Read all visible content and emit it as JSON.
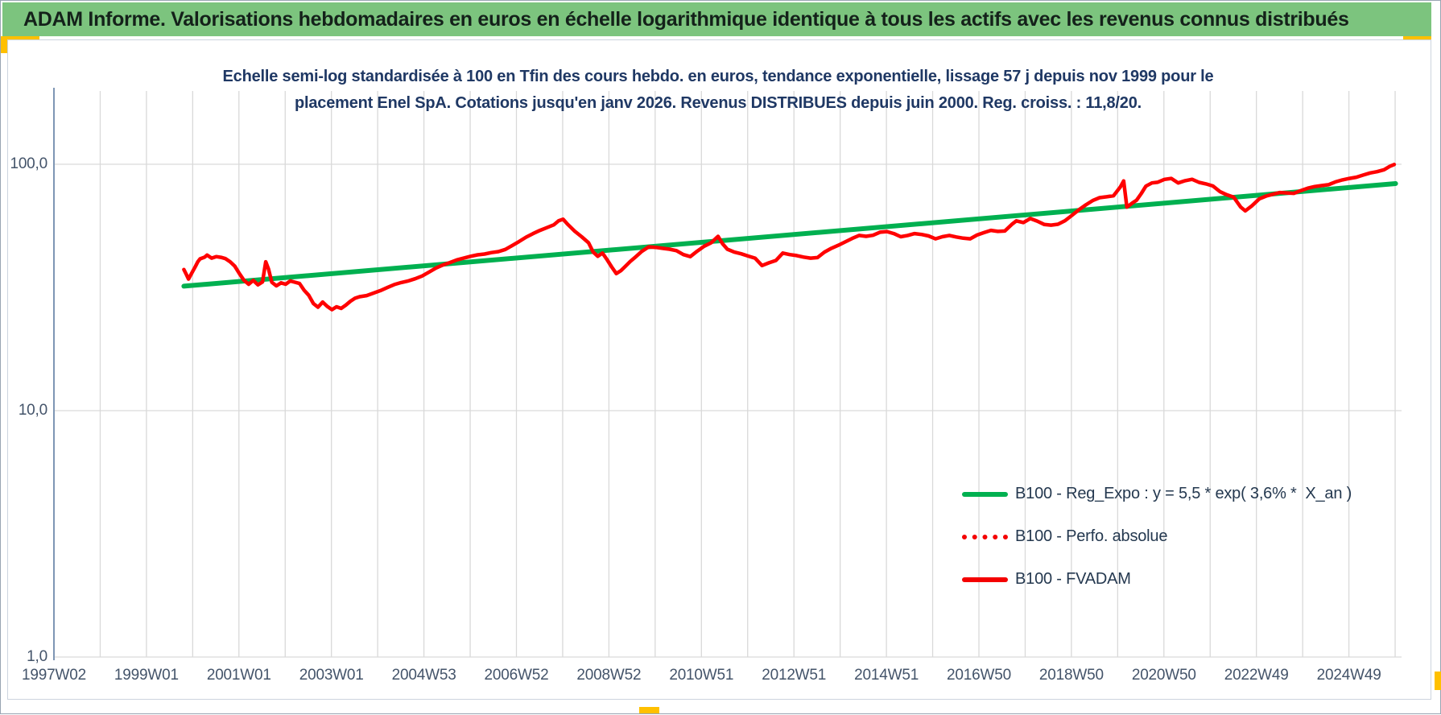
{
  "page": {
    "header": {
      "title": "ADAM Informe. Valorisations hebdomadaires en euros en échelle logarithmique identique à tous les actifs avec les revenus connus distribués",
      "bg_color": "#7CC47E",
      "accent_color": "#FFC000"
    }
  },
  "chart_data": {
    "type": "line",
    "title": "Echelle semi-log standardisée à 100 en Tfin des cours hebdo. en euros, tendance exponentielle, lissage 57 j depuis nov 1999 pour le placement Enel SpA. Cotations jusqu'en janv 2026. Revenus DISTRIBUES depuis juin 2000. Reg. croiss. : 11,8/20.",
    "title_lines": [
      "Echelle semi-log standardisée à 100 en Tfin des cours hebdo. en euros, tendance exponentielle, lissage 57 j depuis nov 1999 pour le",
      "placement Enel SpA. Cotations jusqu'en janv 2026. Revenus DISTRIBUES depuis juin 2000. Reg. croiss. : 11,8/20."
    ],
    "xlabel": "",
    "ylabel": "",
    "x_axis": {
      "tick_labels": [
        "1997W02",
        "1999W01",
        "2001W01",
        "2003W01",
        "2004W53",
        "2006W52",
        "2008W52",
        "2010W51",
        "2012W51",
        "2014W51",
        "2016W50",
        "2018W50",
        "2020W50",
        "2022W49",
        "2024W49"
      ],
      "range_years": [
        1997.04,
        2026.2
      ],
      "minor_gridline_interval_years": 1
    },
    "y_axis": {
      "scale": "log",
      "tick_labels": [
        "100,0",
        "10,0",
        "1,0"
      ],
      "tick_values": [
        100,
        10,
        1
      ],
      "range": [
        1,
        200
      ],
      "grid": true
    },
    "legend": {
      "position": "center-right",
      "entries": [
        {
          "label": "B100 - Reg_Expo : y = 5,5 * exp( 3,6% *  X_an )",
          "color": "#00B050",
          "style": "solid"
        },
        {
          "label": "B100 - Perfo. absolue",
          "color": "#FF0000",
          "style": "dotted"
        },
        {
          "label": "B100 - FVADAM",
          "color": "#FF0000",
          "style": "solid"
        }
      ]
    },
    "series": [
      {
        "name": "B100 - Reg_Expo",
        "color": "#00B050",
        "style": "solid",
        "width": 6,
        "note": "exponential trend, straight on semilog axis",
        "points": [
          [
            1999.85,
            32.0
          ],
          [
            2026.05,
            83.5
          ]
        ]
      },
      {
        "name": "B100 - Perfo. absolue",
        "color": "#FF0000",
        "style": "dotted",
        "note": "coincides with B100 - FVADAM, not separately visible on plot",
        "points": []
      },
      {
        "name": "B100 - FVADAM",
        "color": "#FF0000",
        "style": "solid",
        "width": 4.5,
        "points": [
          [
            1999.85,
            37.4
          ],
          [
            1999.9,
            35.8
          ],
          [
            1999.95,
            34.2
          ],
          [
            2000.05,
            37.0
          ],
          [
            2000.1,
            38.5
          ],
          [
            2000.15,
            40.2
          ],
          [
            2000.2,
            41.3
          ],
          [
            2000.3,
            42.0
          ],
          [
            2000.35,
            42.8
          ],
          [
            2000.45,
            41.6
          ],
          [
            2000.55,
            42.2
          ],
          [
            2000.65,
            41.9
          ],
          [
            2000.75,
            41.4
          ],
          [
            2000.85,
            40.2
          ],
          [
            2000.95,
            38.6
          ],
          [
            2001.05,
            36.0
          ],
          [
            2001.15,
            33.8
          ],
          [
            2001.25,
            32.6
          ],
          [
            2001.35,
            33.8
          ],
          [
            2001.45,
            32.4
          ],
          [
            2001.55,
            33.3
          ],
          [
            2001.62,
            40.2
          ],
          [
            2001.68,
            37.5
          ],
          [
            2001.75,
            33.2
          ],
          [
            2001.85,
            32.1
          ],
          [
            2001.95,
            33.0
          ],
          [
            2002.05,
            32.6
          ],
          [
            2002.15,
            33.6
          ],
          [
            2002.25,
            33.2
          ],
          [
            2002.35,
            32.8
          ],
          [
            2002.45,
            30.8
          ],
          [
            2002.55,
            29.4
          ],
          [
            2002.65,
            27.2
          ],
          [
            2002.75,
            26.3
          ],
          [
            2002.85,
            27.6
          ],
          [
            2002.95,
            26.5
          ],
          [
            2003.05,
            25.7
          ],
          [
            2003.15,
            26.4
          ],
          [
            2003.25,
            26.0
          ],
          [
            2003.35,
            26.8
          ],
          [
            2003.45,
            27.8
          ],
          [
            2003.55,
            28.6
          ],
          [
            2003.65,
            29.0
          ],
          [
            2003.8,
            29.3
          ],
          [
            2003.95,
            30.0
          ],
          [
            2004.1,
            30.7
          ],
          [
            2004.25,
            31.6
          ],
          [
            2004.4,
            32.5
          ],
          [
            2004.55,
            33.1
          ],
          [
            2004.7,
            33.6
          ],
          [
            2004.85,
            34.3
          ],
          [
            2005.0,
            35.2
          ],
          [
            2005.15,
            36.5
          ],
          [
            2005.3,
            37.9
          ],
          [
            2005.45,
            39.0
          ],
          [
            2005.6,
            39.9
          ],
          [
            2005.75,
            40.9
          ],
          [
            2005.9,
            41.6
          ],
          [
            2006.05,
            42.3
          ],
          [
            2006.2,
            42.9
          ],
          [
            2006.35,
            43.2
          ],
          [
            2006.5,
            43.8
          ],
          [
            2006.65,
            44.2
          ],
          [
            2006.8,
            45.1
          ],
          [
            2006.95,
            46.8
          ],
          [
            2007.1,
            48.6
          ],
          [
            2007.25,
            50.6
          ],
          [
            2007.4,
            52.3
          ],
          [
            2007.55,
            53.9
          ],
          [
            2007.7,
            55.3
          ],
          [
            2007.85,
            56.8
          ],
          [
            2007.95,
            58.9
          ],
          [
            2008.05,
            59.8
          ],
          [
            2008.15,
            57.0
          ],
          [
            2008.3,
            53.5
          ],
          [
            2008.45,
            50.8
          ],
          [
            2008.6,
            48.0
          ],
          [
            2008.7,
            44.0
          ],
          [
            2008.8,
            42.3
          ],
          [
            2008.9,
            43.6
          ],
          [
            2009.0,
            41.0
          ],
          [
            2009.1,
            38.3
          ],
          [
            2009.2,
            36.0
          ],
          [
            2009.3,
            37.0
          ],
          [
            2009.4,
            38.6
          ],
          [
            2009.5,
            40.3
          ],
          [
            2009.6,
            41.8
          ],
          [
            2009.75,
            44.3
          ],
          [
            2009.9,
            46.2
          ],
          [
            2010.05,
            46.0
          ],
          [
            2010.2,
            45.6
          ],
          [
            2010.35,
            45.2
          ],
          [
            2010.5,
            44.6
          ],
          [
            2010.65,
            43.0
          ],
          [
            2010.8,
            42.2
          ],
          [
            2010.95,
            44.4
          ],
          [
            2011.1,
            46.5
          ],
          [
            2011.25,
            48.0
          ],
          [
            2011.4,
            51.0
          ],
          [
            2011.5,
            47.5
          ],
          [
            2011.6,
            45.2
          ],
          [
            2011.75,
            44.0
          ],
          [
            2011.9,
            43.3
          ],
          [
            2012.05,
            42.4
          ],
          [
            2012.2,
            41.6
          ],
          [
            2012.35,
            38.8
          ],
          [
            2012.5,
            39.8
          ],
          [
            2012.65,
            40.7
          ],
          [
            2012.8,
            43.6
          ],
          [
            2012.95,
            43.0
          ],
          [
            2013.1,
            42.6
          ],
          [
            2013.25,
            42.0
          ],
          [
            2013.4,
            41.6
          ],
          [
            2013.55,
            41.8
          ],
          [
            2013.7,
            44.0
          ],
          [
            2013.85,
            45.6
          ],
          [
            2014.0,
            46.9
          ],
          [
            2014.15,
            48.4
          ],
          [
            2014.3,
            50.0
          ],
          [
            2014.45,
            51.4
          ],
          [
            2014.6,
            51.0
          ],
          [
            2014.75,
            51.5
          ],
          [
            2014.9,
            53.0
          ],
          [
            2015.05,
            53.3
          ],
          [
            2015.2,
            52.3
          ],
          [
            2015.35,
            50.8
          ],
          [
            2015.5,
            51.4
          ],
          [
            2015.65,
            52.3
          ],
          [
            2015.8,
            51.9
          ],
          [
            2015.95,
            51.2
          ],
          [
            2016.1,
            49.8
          ],
          [
            2016.25,
            50.8
          ],
          [
            2016.4,
            51.4
          ],
          [
            2016.55,
            50.7
          ],
          [
            2016.7,
            50.1
          ],
          [
            2016.85,
            49.8
          ],
          [
            2017.0,
            51.6
          ],
          [
            2017.15,
            52.8
          ],
          [
            2017.3,
            53.9
          ],
          [
            2017.45,
            53.4
          ],
          [
            2017.6,
            53.6
          ],
          [
            2017.75,
            57.0
          ],
          [
            2017.85,
            58.9
          ],
          [
            2018.0,
            58.0
          ],
          [
            2018.15,
            60.2
          ],
          [
            2018.3,
            58.8
          ],
          [
            2018.45,
            57.0
          ],
          [
            2018.6,
            56.6
          ],
          [
            2018.75,
            57.1
          ],
          [
            2018.9,
            59.0
          ],
          [
            2019.05,
            62.0
          ],
          [
            2019.2,
            65.3
          ],
          [
            2019.35,
            68.4
          ],
          [
            2019.5,
            71.2
          ],
          [
            2019.65,
            73.2
          ],
          [
            2019.8,
            73.8
          ],
          [
            2019.95,
            74.5
          ],
          [
            2020.1,
            81.0
          ],
          [
            2020.17,
            85.6
          ],
          [
            2020.24,
            67.0
          ],
          [
            2020.35,
            69.5
          ],
          [
            2020.45,
            71.5
          ],
          [
            2020.55,
            76.0
          ],
          [
            2020.65,
            81.5
          ],
          [
            2020.78,
            84.0
          ],
          [
            2020.9,
            84.5
          ],
          [
            2021.05,
            86.8
          ],
          [
            2021.2,
            87.6
          ],
          [
            2021.35,
            84.0
          ],
          [
            2021.5,
            85.8
          ],
          [
            2021.65,
            86.9
          ],
          [
            2021.8,
            84.4
          ],
          [
            2021.95,
            83.2
          ],
          [
            2022.1,
            81.6
          ],
          [
            2022.25,
            77.5
          ],
          [
            2022.4,
            75.2
          ],
          [
            2022.55,
            73.5
          ],
          [
            2022.7,
            67.0
          ],
          [
            2022.8,
            64.7
          ],
          [
            2022.95,
            68.0
          ],
          [
            2023.1,
            72.3
          ],
          [
            2023.25,
            74.3
          ],
          [
            2023.4,
            75.6
          ],
          [
            2023.55,
            76.8
          ],
          [
            2023.7,
            76.5
          ],
          [
            2023.85,
            76.2
          ],
          [
            2024.0,
            78.2
          ],
          [
            2024.15,
            80.0
          ],
          [
            2024.3,
            81.2
          ],
          [
            2024.45,
            81.9
          ],
          [
            2024.6,
            82.6
          ],
          [
            2024.75,
            84.8
          ],
          [
            2024.9,
            86.4
          ],
          [
            2025.05,
            87.6
          ],
          [
            2025.2,
            88.6
          ],
          [
            2025.35,
            90.4
          ],
          [
            2025.5,
            92.2
          ],
          [
            2025.65,
            93.3
          ],
          [
            2025.8,
            95.0
          ],
          [
            2025.92,
            98.0
          ],
          [
            2026.02,
            99.8
          ]
        ]
      }
    ],
    "colors": {
      "trend_green": "#00B050",
      "series_red": "#FF0000",
      "gridline": "#D9D9D9",
      "axis_line": "#7E96B4",
      "tick_text": "#44546A",
      "title_text": "#1F3864"
    }
  }
}
